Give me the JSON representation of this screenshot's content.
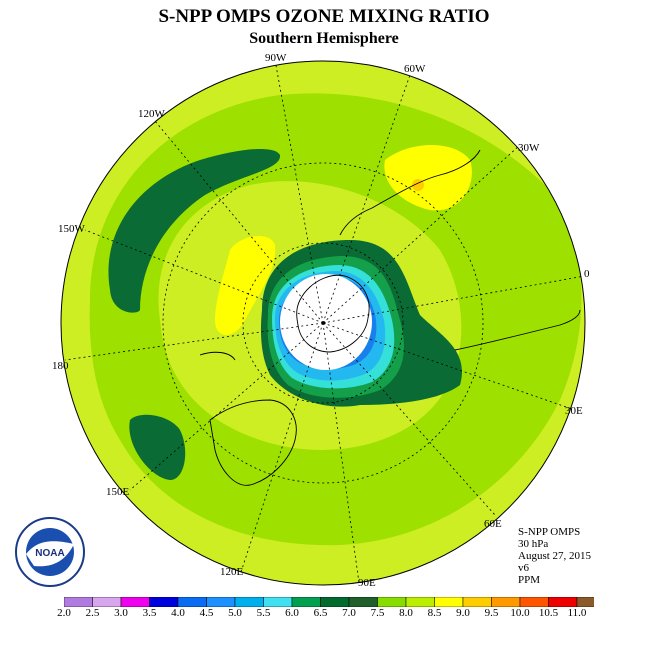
{
  "title": "S-NPP OMPS OZONE MIXING RATIO",
  "subtitle": "Southern Hemisphere",
  "info": {
    "instrument": "S-NPP OMPS",
    "level": "30 hPa",
    "date": "August 27, 2015",
    "version": "v6",
    "units": "PPM"
  },
  "longitude_labels": [
    "90W",
    "60W",
    "30W",
    "0",
    "30E",
    "60E",
    "90E",
    "120E",
    "150E",
    "180",
    "150W",
    "120W"
  ],
  "logo_text": "NOAA",
  "colorbar": {
    "ticks": [
      "2.0",
      "2.5",
      "3.0",
      "3.5",
      "4.0",
      "4.5",
      "5.0",
      "5.5",
      "6.0",
      "6.5",
      "7.0",
      "7.5",
      "8.0",
      "8.5",
      "9.0",
      "9.5",
      "10.0",
      "10.5",
      "11.0"
    ],
    "colors": [
      "#b07be0",
      "#d7a6ee",
      "#ee00ee",
      "#0000dd",
      "#0a6cf2",
      "#1e90ff",
      "#00b0ee",
      "#40e0f0",
      "#00a050",
      "#006b2c",
      "#1f5f2a",
      "#88dd00",
      "#bbee00",
      "#ffff00",
      "#ffcc00",
      "#ff9900",
      "#ff5500",
      "#ee0000",
      "#8b5a2b"
    ]
  },
  "palette": {
    "land_fill": "#ccee22",
    "ring_mid": "#9ee000",
    "dark_green": "#0b6b34",
    "green": "#14a04a",
    "teal": "#34e0d8",
    "cyan": "#23b8f0",
    "blue": "#1780ea",
    "yellow": "#ffff00",
    "orange": "#ffaa00"
  }
}
